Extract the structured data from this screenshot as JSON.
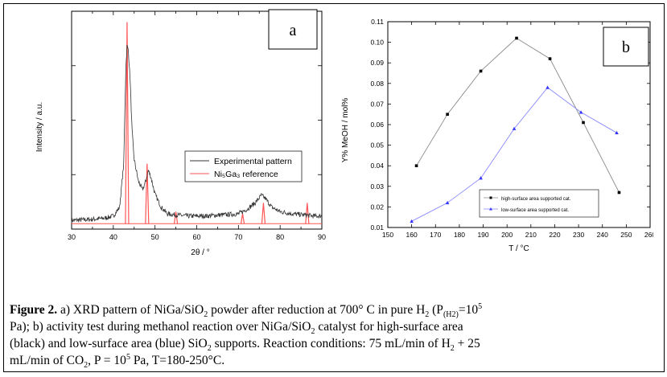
{
  "chart_data": [
    {
      "type": "line",
      "panel_label": "a",
      "xlabel": "2θ / °",
      "ylabel": "Intensity / a.u.",
      "xlim": [
        30,
        90
      ],
      "x_ticks": [
        30,
        40,
        50,
        60,
        70,
        80,
        90
      ],
      "y_ticks_labeled": false,
      "legend_position": "center-right",
      "series": [
        {
          "name": "Experimental pattern",
          "color": "#333333",
          "x": [
            30,
            35,
            38,
            40,
            41.5,
            42.5,
            43.0,
            43.3,
            43.6,
            44.0,
            44.5,
            45.0,
            46.0,
            47.0,
            47.8,
            48.4,
            49.0,
            50.0,
            51.5,
            53,
            55,
            58,
            62,
            66,
            70,
            72,
            74,
            75.5,
            76.5,
            78,
            80,
            83,
            86,
            88,
            90
          ],
          "y": [
            0.04,
            0.045,
            0.05,
            0.06,
            0.1,
            0.3,
            0.74,
            0.84,
            0.82,
            0.7,
            0.45,
            0.32,
            0.22,
            0.18,
            0.22,
            0.27,
            0.24,
            0.16,
            0.1,
            0.07,
            0.065,
            0.06,
            0.06,
            0.065,
            0.07,
            0.09,
            0.12,
            0.155,
            0.14,
            0.1,
            0.08,
            0.07,
            0.065,
            0.06,
            0.06
          ]
        },
        {
          "name": "Ni₅Ga₃ reference",
          "color": "#ff5555",
          "peaks": [
            {
              "x": 43.3,
              "y": 0.95
            },
            {
              "x": 48.1,
              "y": 0.3
            },
            {
              "x": 55.0,
              "y": 0.08
            },
            {
              "x": 71.0,
              "y": 0.07
            },
            {
              "x": 76.0,
              "y": 0.12
            },
            {
              "x": 86.5,
              "y": 0.12
            }
          ]
        }
      ]
    },
    {
      "type": "line",
      "panel_label": "b",
      "xlabel": "T / °C",
      "ylabel": "Y% MeOH / mol%",
      "xlim": [
        150,
        260
      ],
      "ylim": [
        0.01,
        0.11
      ],
      "x_ticks": [
        150,
        160,
        170,
        180,
        190,
        200,
        210,
        220,
        230,
        240,
        250,
        260
      ],
      "y_ticks": [
        0.01,
        0.02,
        0.03,
        0.04,
        0.05,
        0.06,
        0.07,
        0.08,
        0.09,
        0.1,
        0.11
      ],
      "y_tick_labels": [
        "0.01",
        "0.02",
        "0.03",
        "0.04",
        "0.05",
        "0.06",
        "0.07",
        "0.08",
        "0.09",
        "0.10",
        "0.11"
      ],
      "legend_position": "bottom-right",
      "series": [
        {
          "name": "high-surface area supported cat.",
          "color": "#000000",
          "line_color": "#888888",
          "x": [
            162,
            175,
            189,
            204,
            218,
            232,
            247
          ],
          "y": [
            0.04,
            0.065,
            0.086,
            0.102,
            0.092,
            0.061,
            0.027
          ]
        },
        {
          "name": "low-surface area supported cat.",
          "color": "#3333ff",
          "line_color": "#8888ff",
          "x": [
            160,
            175,
            189,
            203,
            217,
            231,
            246
          ],
          "y": [
            0.013,
            0.022,
            0.034,
            0.058,
            0.078,
            0.066,
            0.056
          ]
        }
      ]
    }
  ],
  "caption": {
    "bold": "Figure 2.",
    "line1": [
      {
        "t": " a) XRD pattern of NiGa/SiO"
      },
      {
        "sub": "2"
      },
      {
        "t": " powder after reduction at 700° C in pure H"
      },
      {
        "sub": "2"
      },
      {
        "t": " (P"
      },
      {
        "sub": "(H2)"
      },
      {
        "t": "=10"
      },
      {
        "sup": "5"
      }
    ],
    "line2": [
      {
        "t": "Pa); b) activity test during methanol reaction over NiGa/SiO"
      },
      {
        "sub": "2"
      },
      {
        "t": " catalyst for high-surface area"
      }
    ],
    "line3": [
      {
        "t": "(black) and low-surface area (blue) SiO"
      },
      {
        "sub": "2"
      },
      {
        "t": " supports. Reaction conditions: 75 mL/min of H"
      },
      {
        "sub": "2"
      },
      {
        "t": " + 25"
      }
    ],
    "line4": [
      {
        "t": "mL/min of CO"
      },
      {
        "sub": "2"
      },
      {
        "t": ", P = 10"
      },
      {
        "sup": "5"
      },
      {
        "t": " Pa, T=180-250°C."
      }
    ]
  }
}
